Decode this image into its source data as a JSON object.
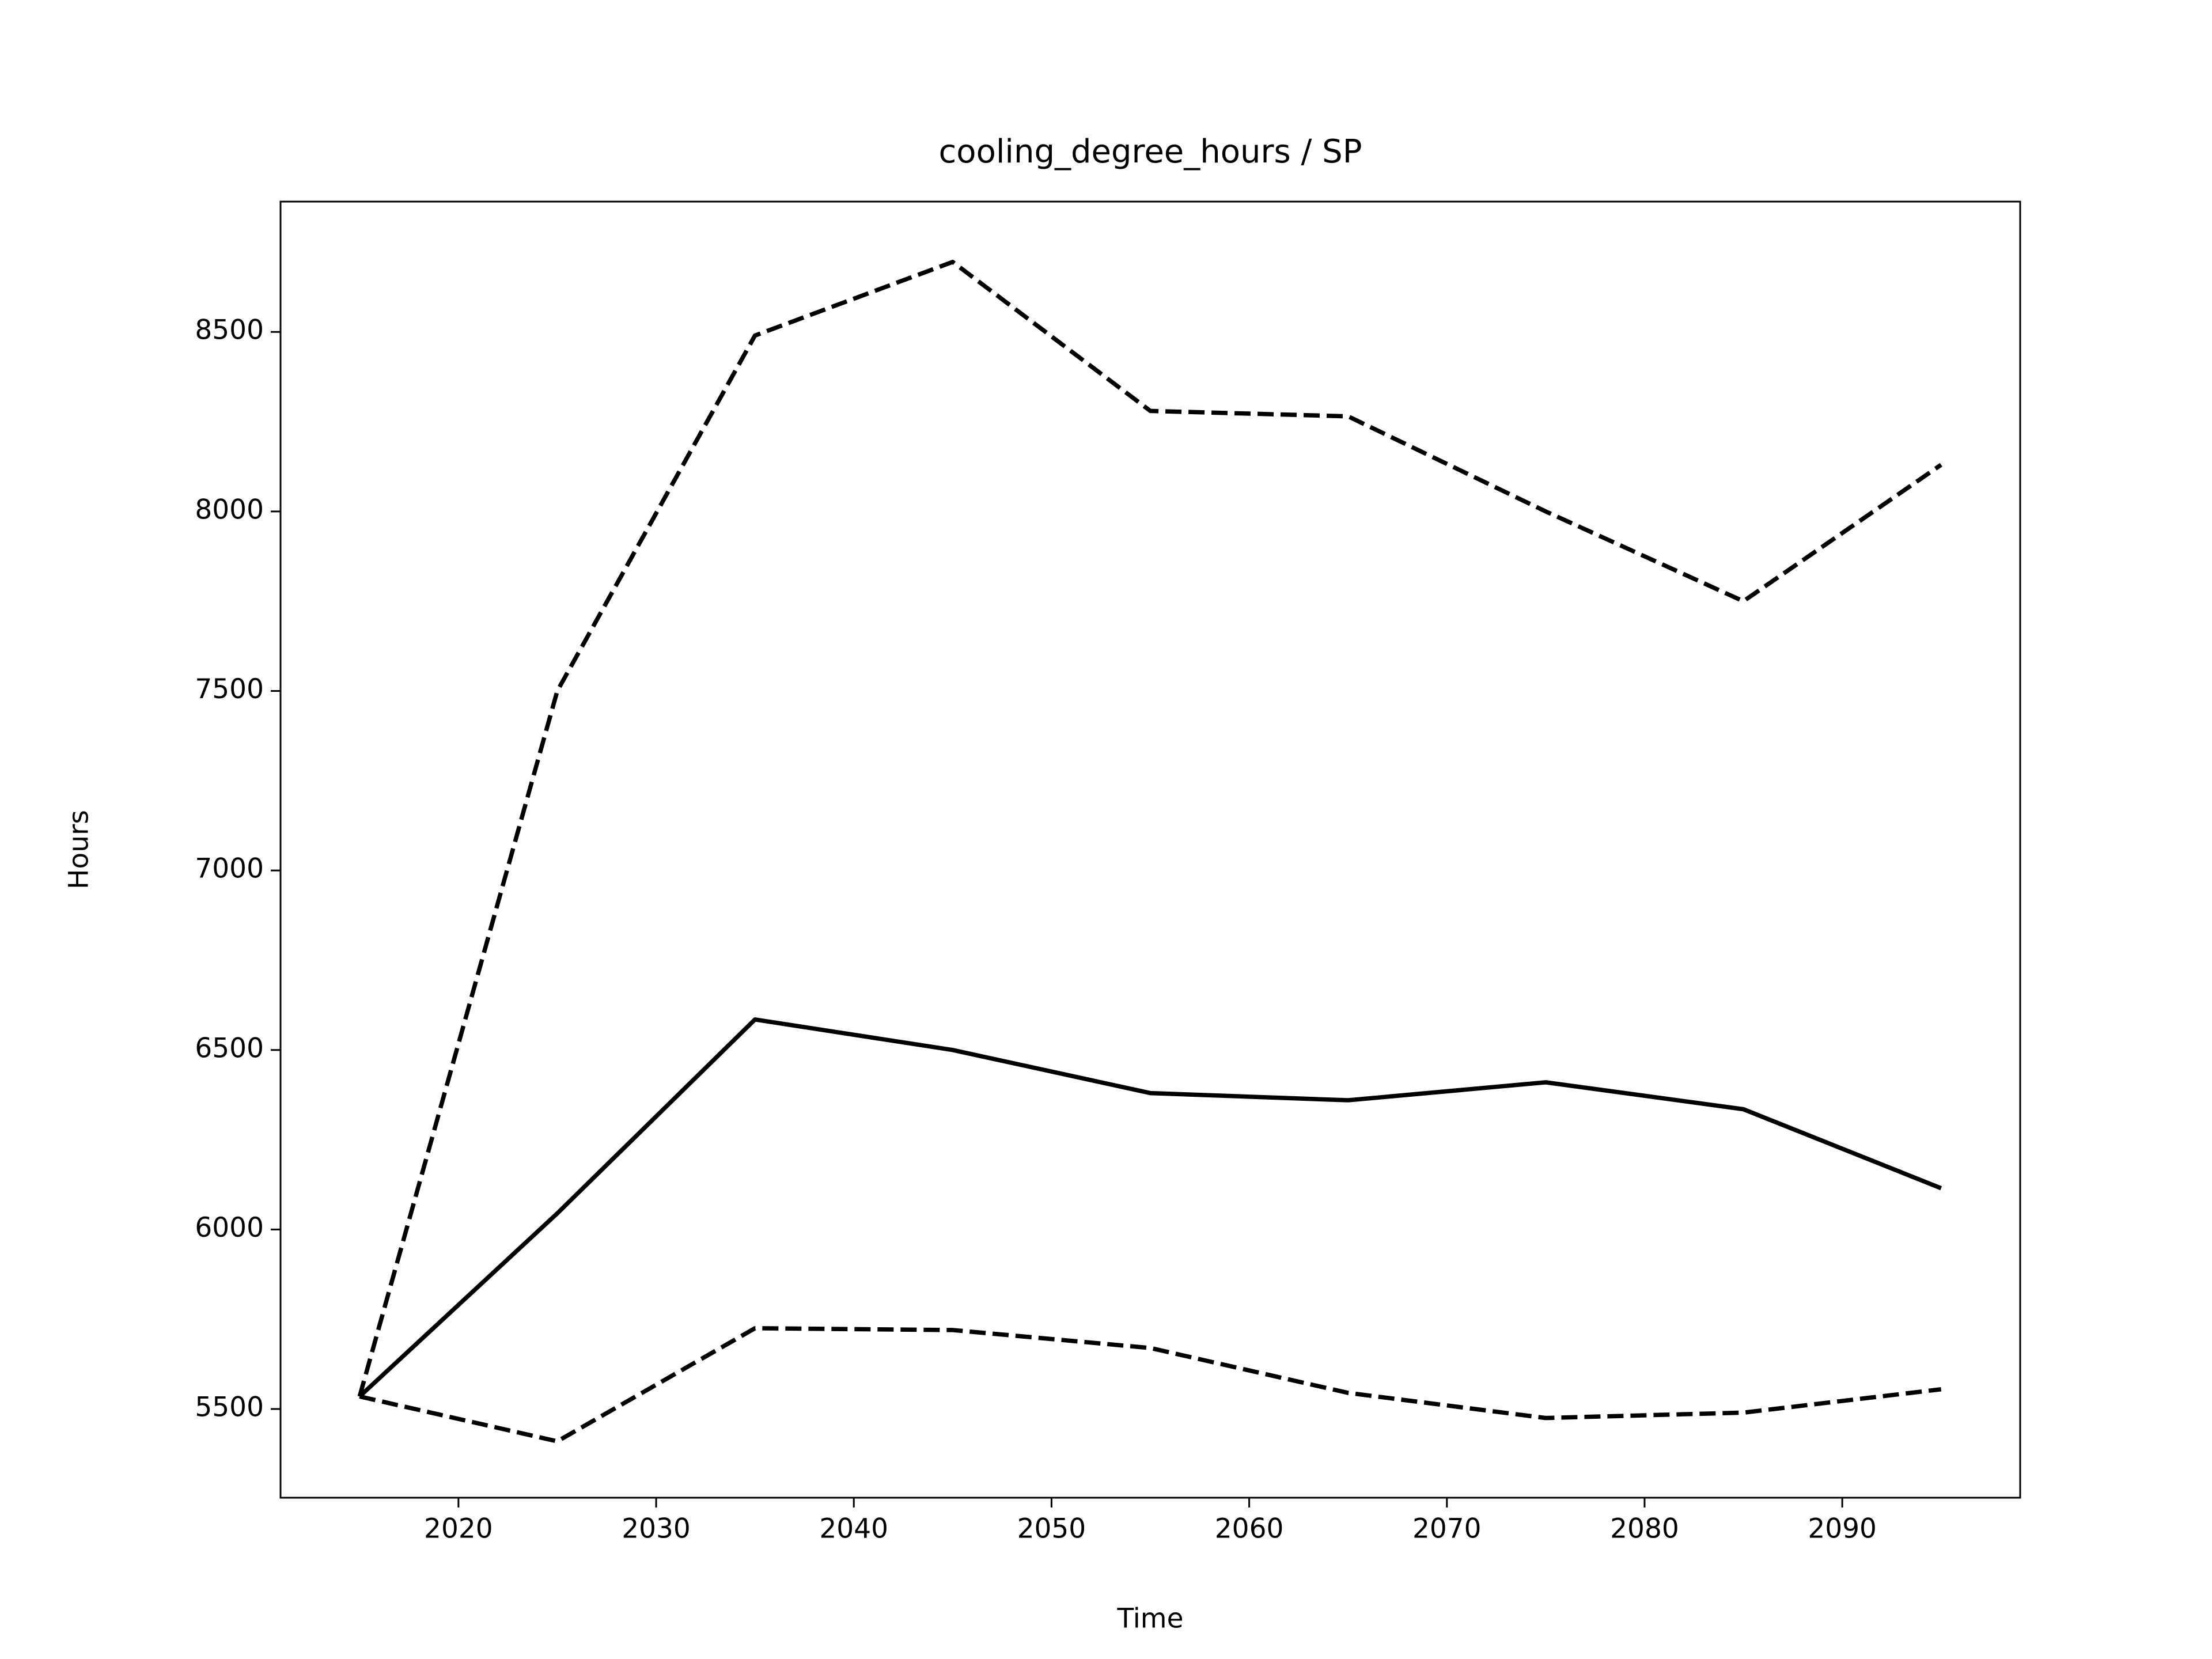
{
  "chart_data": {
    "type": "line",
    "title": "cooling_degree_hours / SP",
    "xlabel": "Time",
    "ylabel": "Hours",
    "x": [
      2015,
      2025,
      2035,
      2045,
      2055,
      2065,
      2075,
      2085,
      2095
    ],
    "series": [
      {
        "color": "#000000",
        "dash": "solid",
        "values": [
          5535,
          6045,
          6585,
          6500,
          6380,
          6360,
          6410,
          6335,
          6115
        ]
      },
      {
        "color": "#000000",
        "dash": "dashed",
        "values": [
          5535,
          7500,
          8490,
          8695,
          8280,
          8265,
          8000,
          7750,
          8130
        ]
      },
      {
        "color": "#000000",
        "dash": "dashed",
        "values": [
          5535,
          5410,
          5725,
          5720,
          5670,
          5545,
          5475,
          5490,
          5555
        ]
      }
    ],
    "xlim": [
      2011,
      2099
    ],
    "xticks": [
      2020,
      2030,
      2040,
      2050,
      2060,
      2070,
      2080,
      2090
    ],
    "ylim": [
      5253,
      8863
    ],
    "yticks": [
      5500,
      6000,
      6500,
      7000,
      7500,
      8000,
      8500
    ],
    "grid": false
  }
}
